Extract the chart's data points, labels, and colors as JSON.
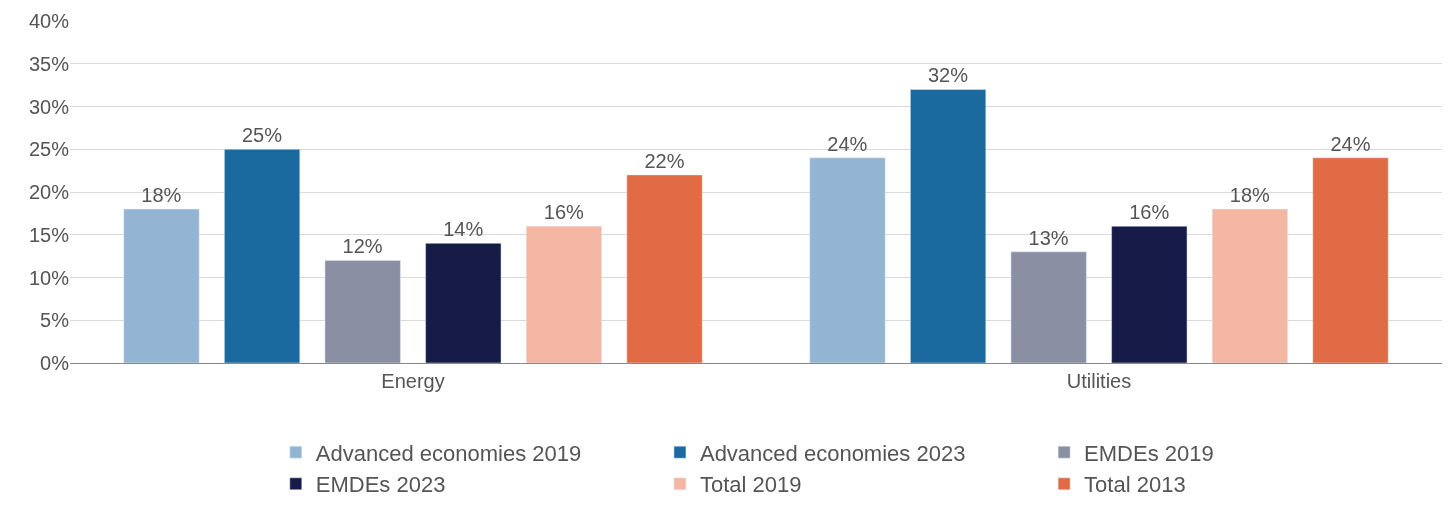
{
  "chart_data": {
    "type": "bar",
    "categories": [
      "Energy",
      "Utilities"
    ],
    "series": [
      {
        "name": "Advanced economies 2019",
        "color": "#93b5d3",
        "values": [
          18,
          24
        ],
        "value_labels": [
          "18%",
          "24%"
        ]
      },
      {
        "name": "Advanced economies 2023",
        "color": "#1a6aa0",
        "values": [
          25,
          32
        ],
        "value_labels": [
          "25%",
          "32%"
        ]
      },
      {
        "name": "EMDEs 2019",
        "color": "#8a8fa3",
        "values": [
          12,
          13
        ],
        "value_labels": [
          "12%",
          "13%"
        ]
      },
      {
        "name": "EMDEs 2023",
        "color": "#161c47",
        "values": [
          14,
          16
        ],
        "value_labels": [
          "14%",
          "16%"
        ]
      },
      {
        "name": "Total 2019",
        "color": "#f3b7a3",
        "values": [
          16,
          18
        ],
        "value_labels": [
          "16%",
          "18%"
        ]
      },
      {
        "name": "Total 2013",
        "color": "#e06b45",
        "values": [
          22,
          24
        ],
        "value_labels": [
          "22%",
          "24%"
        ]
      }
    ],
    "ylim": [
      0,
      40
    ],
    "yticks": [
      {
        "value": 0,
        "label": "0%"
      },
      {
        "value": 5,
        "label": "5%"
      },
      {
        "value": 10,
        "label": "10%"
      },
      {
        "value": 15,
        "label": "15%"
      },
      {
        "value": 20,
        "label": "20%"
      },
      {
        "value": 25,
        "label": "25%"
      },
      {
        "value": 30,
        "label": "30%"
      },
      {
        "value": 35,
        "label": "35%"
      },
      {
        "value": 40,
        "label": "40%"
      }
    ],
    "grid": "y",
    "legend": "bottom"
  }
}
